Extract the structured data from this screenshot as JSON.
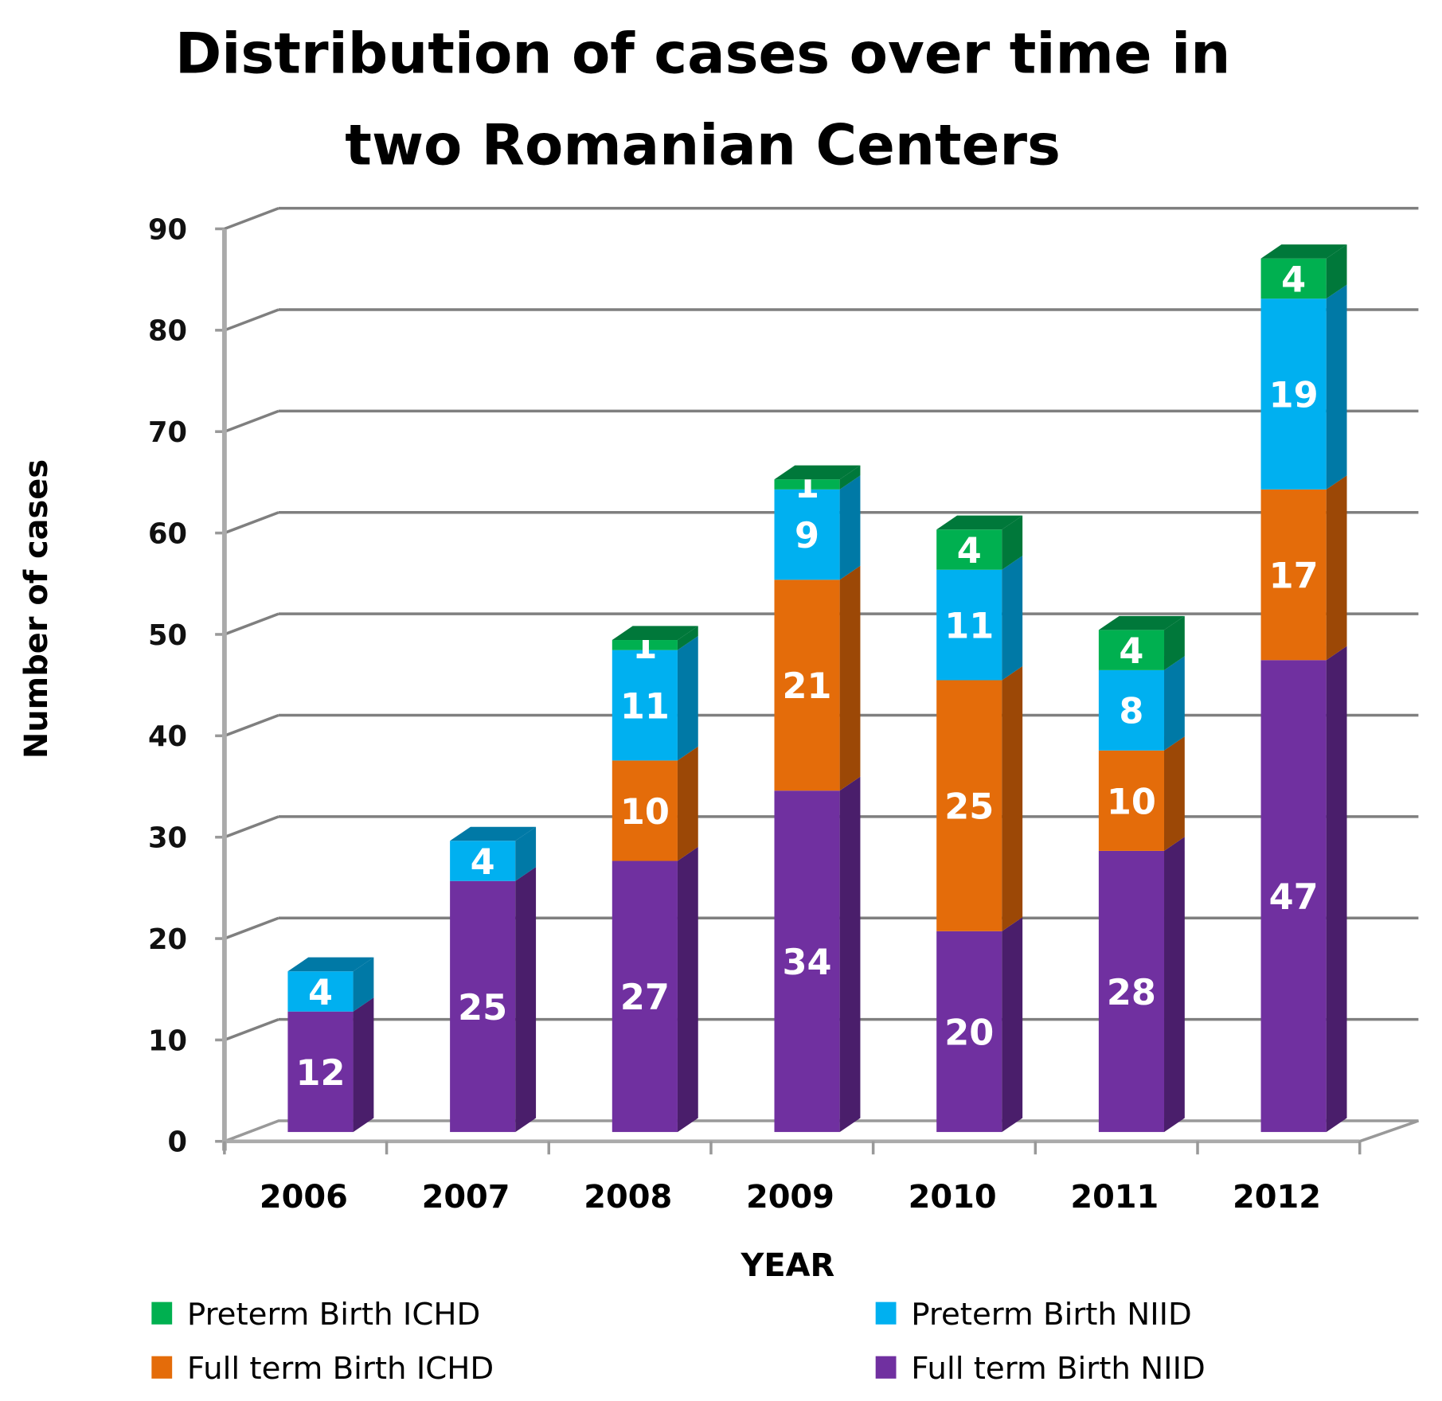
{
  "chart_data": {
    "type": "bar",
    "stacked": true,
    "style": "3d-column",
    "title": [
      "Distribution of cases over time in",
      "two Romanian Centers"
    ],
    "xlabel": "YEAR",
    "ylabel": "Number of cases",
    "ylim": [
      0,
      90
    ],
    "yticks": [
      "0",
      "10",
      "20",
      "30",
      "40",
      "50",
      "60",
      "70",
      "80",
      "90"
    ],
    "grid": true,
    "legend_position": "bottom",
    "categories": [
      "2006",
      "2007",
      "2008",
      "2009",
      "2010",
      "2011",
      "2012"
    ],
    "series": [
      {
        "name": "Full term Birth NIID",
        "color": "#7030a0",
        "side": "#4a1e6b",
        "values": [
          12,
          25,
          27,
          34,
          20,
          28,
          47
        ]
      },
      {
        "name": "Full term Birth ICHD",
        "color": "#e46c0a",
        "side": "#9c4806",
        "values": [
          0,
          0,
          10,
          21,
          25,
          10,
          17
        ]
      },
      {
        "name": "Preterm Birth NIID",
        "color": "#00b0f0",
        "side": "#0079a6",
        "values": [
          4,
          4,
          11,
          9,
          11,
          8,
          19
        ]
      },
      {
        "name": "Preterm Birth ICHD",
        "color": "#00b050",
        "side": "#00783a",
        "values": [
          0,
          0,
          1,
          1,
          4,
          4,
          4
        ]
      }
    ],
    "legend_order": [
      3,
      2,
      1,
      0
    ]
  }
}
